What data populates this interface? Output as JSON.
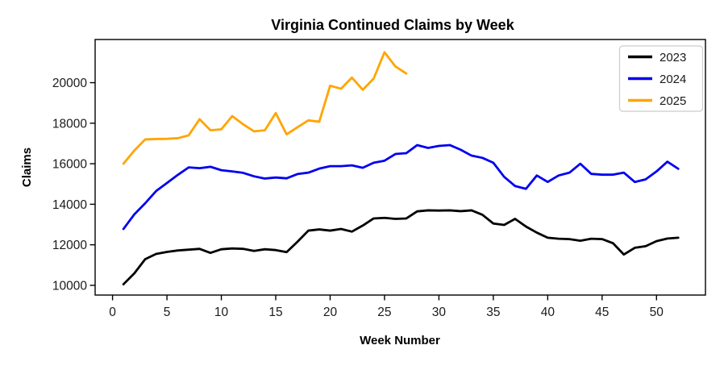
{
  "chart_data": {
    "type": "line",
    "title": "Virginia Continued Claims by Week",
    "xlabel": "Week Number",
    "ylabel": "Claims",
    "x_ticks": [
      0,
      5,
      10,
      15,
      20,
      25,
      30,
      35,
      40,
      45,
      50
    ],
    "y_ticks": [
      10000,
      12000,
      14000,
      16000,
      18000,
      20000
    ],
    "xlim": [
      -1.6,
      54.5
    ],
    "ylim": [
      9520,
      22130
    ],
    "grid": false,
    "legend_position": "upper right",
    "x_unit": "week number starting at 1",
    "series": [
      {
        "name": "2023",
        "color": "#000000",
        "values": [
          10050,
          10590,
          11290,
          11550,
          11650,
          11720,
          11760,
          11800,
          11600,
          11780,
          11820,
          11800,
          11700,
          11780,
          11740,
          11640,
          12150,
          12700,
          12760,
          12700,
          12780,
          12650,
          12950,
          13300,
          13330,
          13280,
          13300,
          13650,
          13700,
          13690,
          13700,
          13660,
          13700,
          13480,
          13050,
          12980,
          13280,
          12900,
          12600,
          12350,
          12300,
          12280,
          12200,
          12300,
          12280,
          12080,
          11520,
          11850,
          11930,
          12180,
          12310,
          12350
        ]
      },
      {
        "name": "2024",
        "color": "#0000f0",
        "values": [
          12780,
          13500,
          14050,
          14650,
          15050,
          15450,
          15820,
          15780,
          15850,
          15680,
          15620,
          15550,
          15380,
          15270,
          15320,
          15280,
          15490,
          15560,
          15760,
          15880,
          15880,
          15920,
          15800,
          16050,
          16150,
          16480,
          16520,
          16920,
          16780,
          16880,
          16920,
          16690,
          16400,
          16290,
          16050,
          15350,
          14900,
          14760,
          15420,
          15100,
          15420,
          15560,
          16000,
          15500,
          15460,
          15460,
          15560,
          15100,
          15230,
          15620,
          16100,
          15750
        ]
      },
      {
        "name": "2025",
        "color": "#ffa500",
        "values": [
          16000,
          16650,
          17200,
          17220,
          17230,
          17260,
          17400,
          18200,
          17650,
          17700,
          18350,
          17950,
          17600,
          17650,
          18500,
          17450,
          17800,
          18140,
          18075,
          19850,
          19700,
          20250,
          19650,
          20200,
          21500,
          20800,
          20450
        ]
      }
    ]
  }
}
